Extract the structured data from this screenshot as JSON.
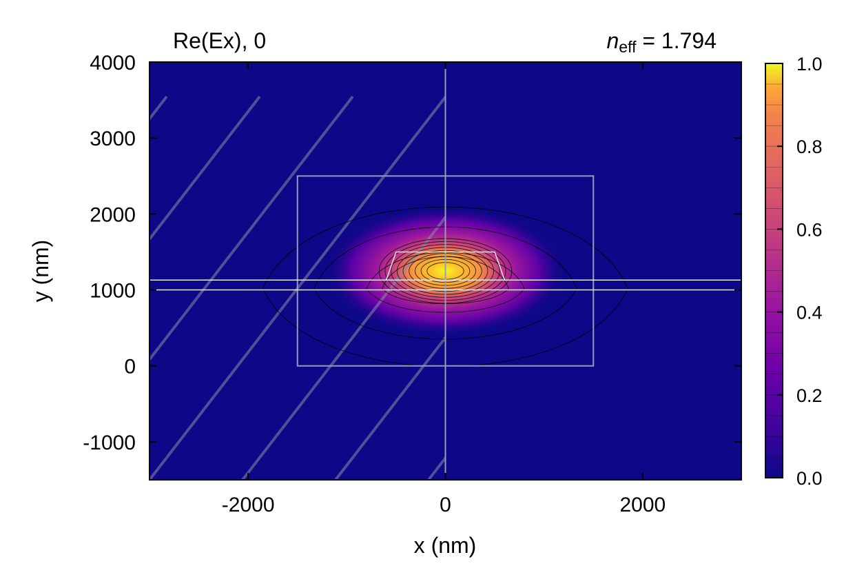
{
  "chart_data": {
    "type": "heatmap",
    "title_left": "Re(Ex), 0",
    "title_right": {
      "symbol": "n",
      "subscript": "eff",
      "value_text": " = 1.794"
    },
    "neff": 1.794,
    "xlabel": "x (nm)",
    "ylabel": "y (nm)",
    "xlim": [
      -3000,
      3000
    ],
    "ylim": [
      -1500,
      4000
    ],
    "xticks": [
      -2000,
      0,
      2000
    ],
    "xtick_labels": [
      "-2000",
      "0",
      "2000"
    ],
    "yticks": [
      -1000,
      0,
      1000,
      2000,
      3000,
      4000
    ],
    "ytick_labels": [
      "-1000",
      "0",
      "1000",
      "2000",
      "3000",
      "4000"
    ],
    "colormap": "plasma",
    "colorbar": {
      "range": [
        0,
        1
      ],
      "ticks": [
        0,
        0.2,
        0.4,
        0.6,
        0.8,
        1.0
      ],
      "tick_labels": [
        "0.0",
        "0.2",
        "0.4",
        "0.6",
        "0.8",
        "1.0"
      ]
    },
    "field_peak": {
      "x": 0,
      "y": 1250,
      "value": 1.0
    },
    "contour_levels": [
      0.02,
      0.05,
      0.1,
      0.2,
      0.3,
      0.4,
      0.5,
      0.6,
      0.7,
      0.8,
      0.9,
      0.97
    ],
    "structure": {
      "layer_lines_y": [
        1000,
        1130
      ],
      "region_box": {
        "x": [
          -1500,
          1500
        ],
        "y": [
          0,
          2500
        ]
      },
      "symmetry_line_x": 0,
      "waveguide_trapezoid": {
        "top_y": 1500,
        "bottom_y": 1130,
        "top_x": [
          -500,
          500
        ],
        "bottom_x": [
          -600,
          600
        ]
      },
      "hatched_region": "left half (x < 0)"
    },
    "colors": {
      "background": "#0d0887",
      "peak": "#f0f921",
      "structure_lines": "#9a9ab8",
      "layer_lines": "#e8e8f0",
      "contours": "#000000"
    }
  }
}
